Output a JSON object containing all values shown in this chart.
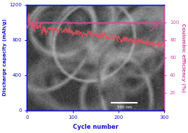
{
  "title": "",
  "xlabel": "Cycle number",
  "ylabel_left": "Discharge capacity (mAh/g)",
  "ylabel_right": "Coulombic efficiency (%)",
  "xlim": [
    0,
    300
  ],
  "ylim_left": [
    0,
    1200
  ],
  "ylim_right": [
    0,
    120
  ],
  "yticks_left": [
    0,
    400,
    800,
    1200
  ],
  "yticks_right": [
    20,
    40,
    60,
    80,
    100
  ],
  "xticks": [
    0,
    100,
    200,
    300
  ],
  "capacity_color": "#e05060",
  "efficiency_color": "#d050a0",
  "axis_color": "#1515cc",
  "tick_color": "#1515cc",
  "figsize": [
    2.68,
    1.89
  ],
  "dpi": 100,
  "n_points": 300,
  "scale_bar_text": "500 nm"
}
